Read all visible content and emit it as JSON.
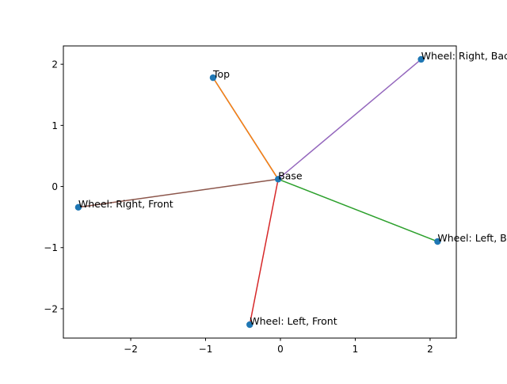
{
  "chart_data": {
    "type": "scatter",
    "title": "",
    "xlabel": "",
    "ylabel": "",
    "xlim": [
      -2.9,
      2.35
    ],
    "ylim": [
      -2.48,
      2.3
    ],
    "grid": false,
    "x_ticks": [
      -2,
      -1,
      0,
      1,
      2
    ],
    "y_ticks": [
      -2,
      -1,
      0,
      1,
      2
    ],
    "x_tick_labels": [
      "−2",
      "−1",
      "0",
      "1",
      "2"
    ],
    "y_tick_labels": [
      "−2",
      "−1",
      "0",
      "1",
      "2"
    ],
    "points": [
      {
        "label": "Base",
        "x": -0.03,
        "y": 0.12
      },
      {
        "label": "Top",
        "x": -0.9,
        "y": 1.78
      },
      {
        "label": "Wheel: Right, Back",
        "x": 1.88,
        "y": 2.08
      },
      {
        "label": "Wheel: Left, Back",
        "x": 2.1,
        "y": -0.9
      },
      {
        "label": "Wheel: Right, Front",
        "x": -2.7,
        "y": -0.34
      },
      {
        "label": "Wheel: Left, Front",
        "x": -0.41,
        "y": -2.26
      }
    ],
    "point_color": "#1f77b4",
    "segments": [
      {
        "from": "Base",
        "to": "Top",
        "color": "#1f77b4"
      },
      {
        "from": "Base",
        "to": "Top",
        "color": "#ff7f0e"
      },
      {
        "from": "Base",
        "to": "Wheel: Left, Back",
        "color": "#2ca02c"
      },
      {
        "from": "Base",
        "to": "Wheel: Left, Front",
        "color": "#d62728"
      },
      {
        "from": "Base",
        "to": "Wheel: Right, Back",
        "color": "#9467bd"
      },
      {
        "from": "Base",
        "to": "Wheel: Right, Front",
        "color": "#8c564b"
      }
    ]
  }
}
